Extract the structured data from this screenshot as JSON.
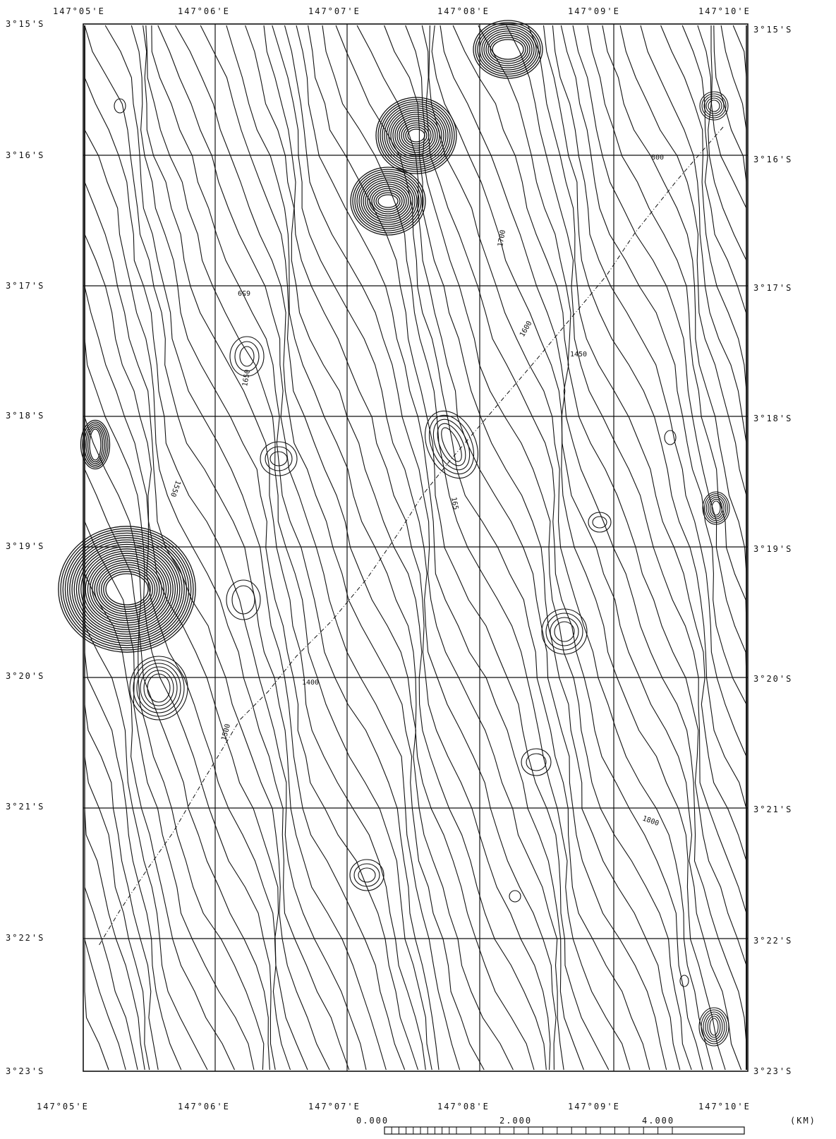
{
  "map": {
    "longitude_labels": [
      "147°05'E",
      "147°06'E",
      "147°07'E",
      "147°08'E",
      "147°09'E",
      "147°10'E"
    ],
    "latitude_labels": [
      "3°15'S",
      "3°16'S",
      "3°17'S",
      "3°18'S",
      "3°19'S",
      "3°20'S",
      "3°21'S",
      "3°22'S",
      "3°23'S"
    ],
    "contour_labels": [
      "800",
      "1700",
      "659",
      "1600",
      "1650",
      "165",
      "1500",
      "1550",
      "1800",
      "1400",
      "1450"
    ],
    "line_color": "#111111",
    "background": "#ffffff"
  },
  "scale_bar": {
    "labels": [
      "0.000",
      "2.000",
      "4.000"
    ],
    "unit": "(KM)"
  }
}
